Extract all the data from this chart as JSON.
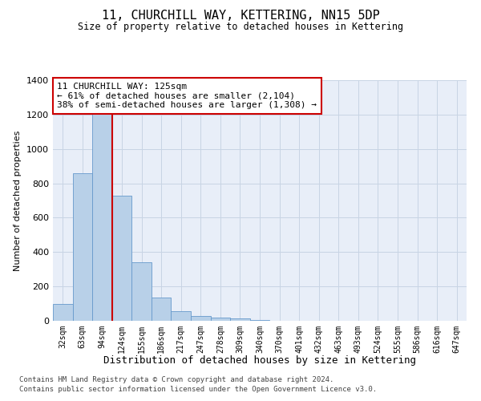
{
  "title": "11, CHURCHILL WAY, KETTERING, NN15 5DP",
  "subtitle": "Size of property relative to detached houses in Kettering",
  "xlabel": "Distribution of detached houses by size in Kettering",
  "ylabel": "Number of detached properties",
  "footnote1": "Contains HM Land Registry data © Crown copyright and database right 2024.",
  "footnote2": "Contains public sector information licensed under the Open Government Licence v3.0.",
  "bar_labels": [
    "32sqm",
    "63sqm",
    "94sqm",
    "124sqm",
    "155sqm",
    "186sqm",
    "217sqm",
    "247sqm",
    "278sqm",
    "309sqm",
    "340sqm",
    "370sqm",
    "401sqm",
    "432sqm",
    "463sqm",
    "493sqm",
    "524sqm",
    "555sqm",
    "586sqm",
    "616sqm",
    "647sqm"
  ],
  "bar_values": [
    100,
    860,
    1240,
    730,
    340,
    135,
    55,
    30,
    20,
    15,
    5,
    0,
    0,
    0,
    0,
    0,
    0,
    0,
    0,
    0,
    0
  ],
  "bar_color": "#b8d0e8",
  "bar_edge_color": "#6699cc",
  "grid_color": "#c8d4e4",
  "bg_color": "#e8eef8",
  "annotation_text": "11 CHURCHILL WAY: 125sqm\n← 61% of detached houses are smaller (2,104)\n38% of semi-detached houses are larger (1,308) →",
  "annotation_box_color": "#cc0000",
  "red_line_x": 2.5,
  "ylim": [
    0,
    1400
  ],
  "yticks": [
    0,
    200,
    400,
    600,
    800,
    1000,
    1200,
    1400
  ]
}
